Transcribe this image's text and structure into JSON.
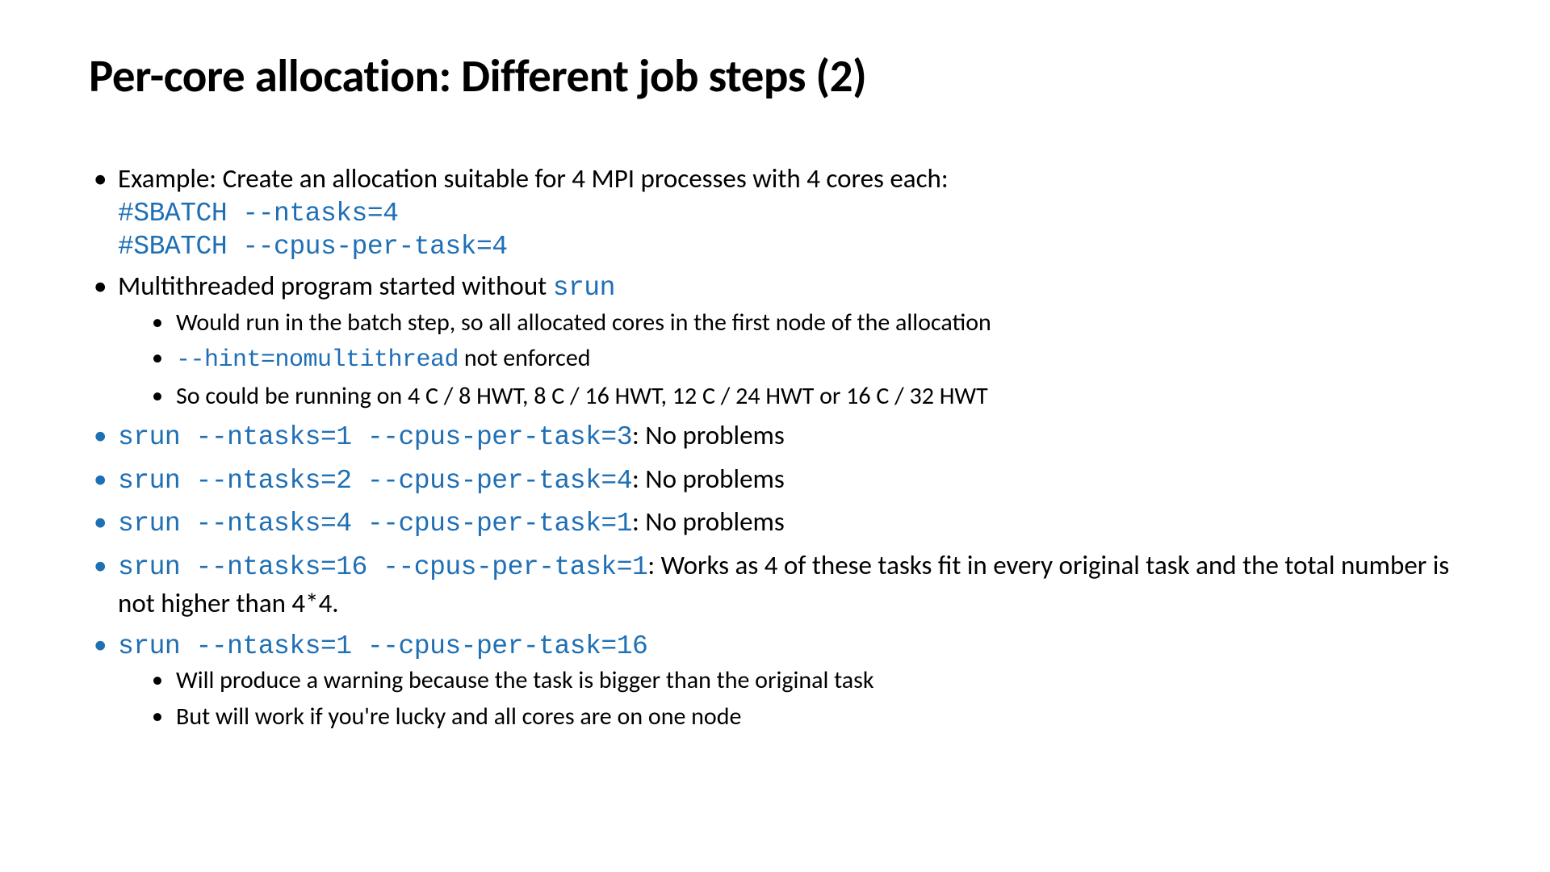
{
  "colors": {
    "text": "#000000",
    "code": "#1f6fb5",
    "background": "#ffffff"
  },
  "typography": {
    "title_fontsize": 57,
    "body_fontsize": 33,
    "sub_fontsize": 30,
    "title_weight": 700,
    "body_family": "Calibri",
    "code_family": "Consolas"
  },
  "title": "Per-core allocation: Different job steps (2)",
  "bullets": {
    "b1_text": "Example: Create an allocation suitable for 4 MPI processes with 4 cores each:",
    "b1_code1": "#SBATCH --ntasks=4",
    "b1_code2": "#SBATCH --cpus-per-task=4",
    "b2_pre": "Multithreaded program started without ",
    "b2_code": "srun",
    "b2_sub1": "Would run in the batch step, so all allocated cores in the first node of the allocation",
    "b2_sub2_code": "--hint=nomultithread",
    "b2_sub2_post": " not enforced",
    "b2_sub3": "So could be running on 4 C / 8 HWT, 8 C / 16 HWT, 12 C / 24 HWT or 16 C / 32 HWT",
    "b3_code": "srun --ntasks=1 --cpus-per-task=3",
    "b3_post": ": No problems",
    "b4_code": "srun --ntasks=2 --cpus-per-task=4",
    "b4_post": ": No problems",
    "b5_code": "srun --ntasks=4 --cpus-per-task=1",
    "b5_post": ": No problems",
    "b6_code": "srun --ntasks=16 --cpus-per-task=1",
    "b6_post": ": Works as 4 of these tasks fit in every original task and the total number is not higher than 4*4.",
    "b7_code": "srun --ntasks=1 --cpus-per-task=16",
    "b7_sub1": "Will produce a warning because the task is bigger than the original task",
    "b7_sub2": "But will work if you're lucky and all cores are on one node"
  }
}
